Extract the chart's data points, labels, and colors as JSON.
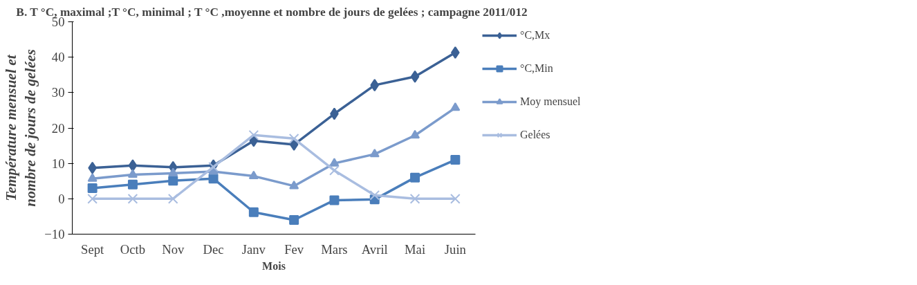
{
  "chart_data": {
    "type": "line",
    "title": "B. T °C, maximal ;T °C, minimal ; T °C ,moyenne et  nombre de jours de gelées ; campagne 2011/012",
    "xlabel": "Mois",
    "ylabel": "Température mensuel et nombre de jours de gelées",
    "categories": [
      "Sept",
      "Octb",
      "Nov",
      "Dec",
      "Janv",
      "Fev",
      "Mars",
      "Avril",
      "Mai",
      "Juin"
    ],
    "ylim": [
      -10,
      50
    ],
    "yticks": [
      -10,
      0,
      10,
      20,
      30,
      40,
      50
    ],
    "grid": false,
    "legend": "right",
    "series": [
      {
        "name": "°C,Mx",
        "color": "#3b6195",
        "marker": "diamond",
        "values": [
          8.7,
          9.4,
          8.9,
          9.4,
          16.4,
          15.3,
          24,
          32.1,
          34.5,
          41.3
        ]
      },
      {
        "name": "°C,Min",
        "color": "#4a7ebb",
        "marker": "square",
        "values": [
          3,
          4,
          5.1,
          5.7,
          -3.8,
          -6,
          -0.4,
          -0.2,
          6,
          11
        ]
      },
      {
        "name": "Moy mensuel",
        "color": "#7b9bcc",
        "marker": "triangle",
        "values": [
          5.7,
          6.8,
          7.2,
          7.7,
          6.4,
          3.6,
          10,
          12.6,
          17.9,
          25.7
        ]
      },
      {
        "name": "Gelées",
        "color": "#a9bde0",
        "marker": "cross",
        "values": [
          0,
          0,
          0,
          9,
          18,
          17,
          8,
          1,
          0,
          0
        ]
      }
    ]
  }
}
